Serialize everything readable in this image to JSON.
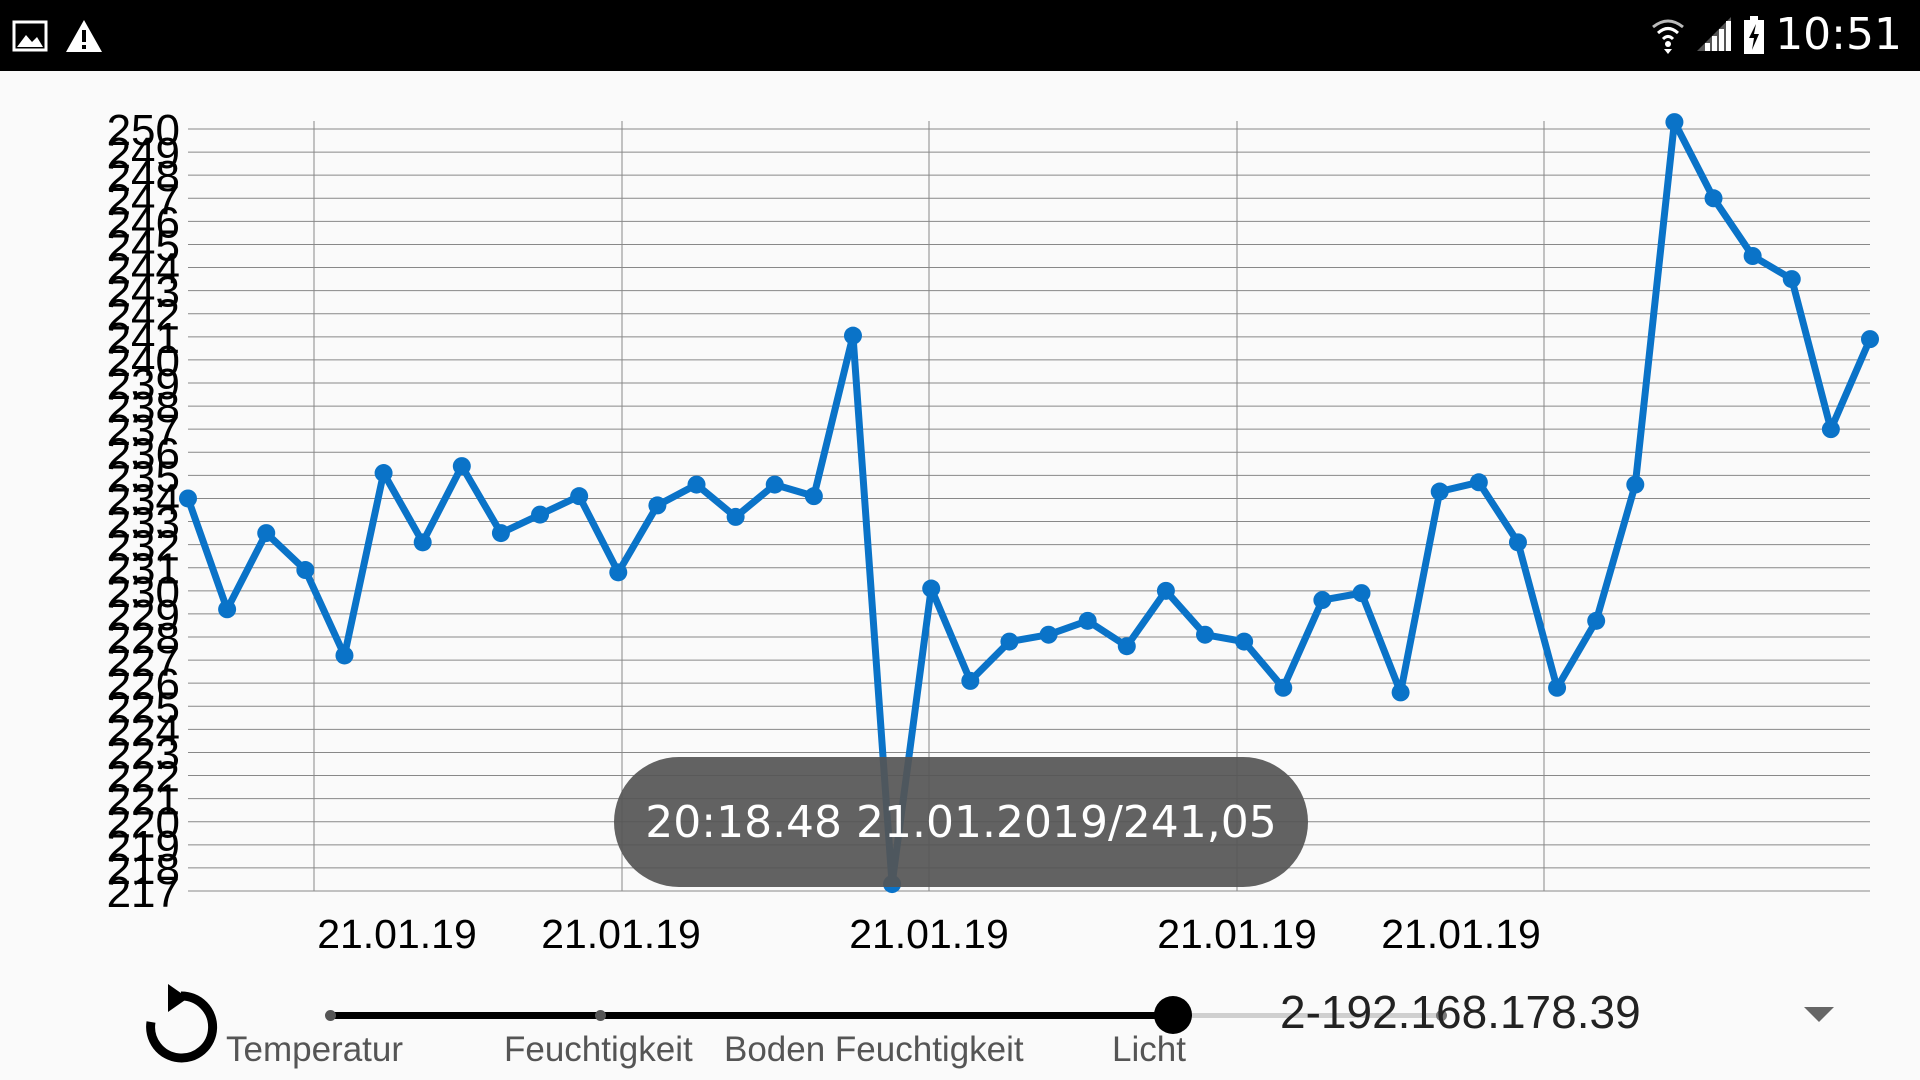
{
  "status_bar": {
    "time": "10:51",
    "left_icons": [
      "image-icon",
      "warning-icon"
    ],
    "right_icons": [
      "wifi-icon",
      "signal-icon",
      "battery-charging-icon"
    ]
  },
  "chart_data": {
    "type": "line",
    "ylim": [
      217,
      250
    ],
    "y_ticks": [
      217,
      218,
      219,
      220,
      221,
      222,
      223,
      224,
      225,
      226,
      227,
      228,
      229,
      230,
      231,
      232,
      233,
      234,
      235,
      236,
      237,
      238,
      239,
      240,
      241,
      242,
      243,
      244,
      245,
      246,
      247,
      248,
      249,
      250
    ],
    "x_tick_labels": [
      "21.01.19",
      "21.01.19",
      "21.01.19",
      "21.01.19",
      "21.01.19"
    ],
    "grid": true,
    "line_color": "#0a73c8",
    "values": [
      234,
      229.2,
      232.5,
      230.9,
      227.2,
      235.1,
      232.1,
      235.4,
      232.5,
      233.3,
      234.1,
      230.8,
      233.7,
      234.6,
      233.2,
      234.6,
      234.1,
      241.05,
      217.3,
      230.1,
      226.1,
      227.8,
      228.1,
      228.7,
      227.6,
      230,
      228.1,
      227.8,
      225.8,
      229.6,
      229.9,
      225.6,
      234.3,
      234.7,
      232.1,
      225.8,
      228.7,
      234.6,
      250.3,
      247,
      244.5,
      243.5,
      237,
      240.9
    ],
    "line_color_name": "blue"
  },
  "tooltip": {
    "text": "20:18.48 21.01.2019/241,05"
  },
  "slider": {
    "labels": [
      "Temperatur",
      "Feuchtigkeit",
      "Boden Feuchtigkeit",
      "Licht"
    ],
    "selected_index": 2
  },
  "device_select": {
    "value": "2-192.168.178.39"
  },
  "colors": {
    "accent": "#0a73c8",
    "statusbar": "#000000",
    "background": "#fafafa"
  }
}
